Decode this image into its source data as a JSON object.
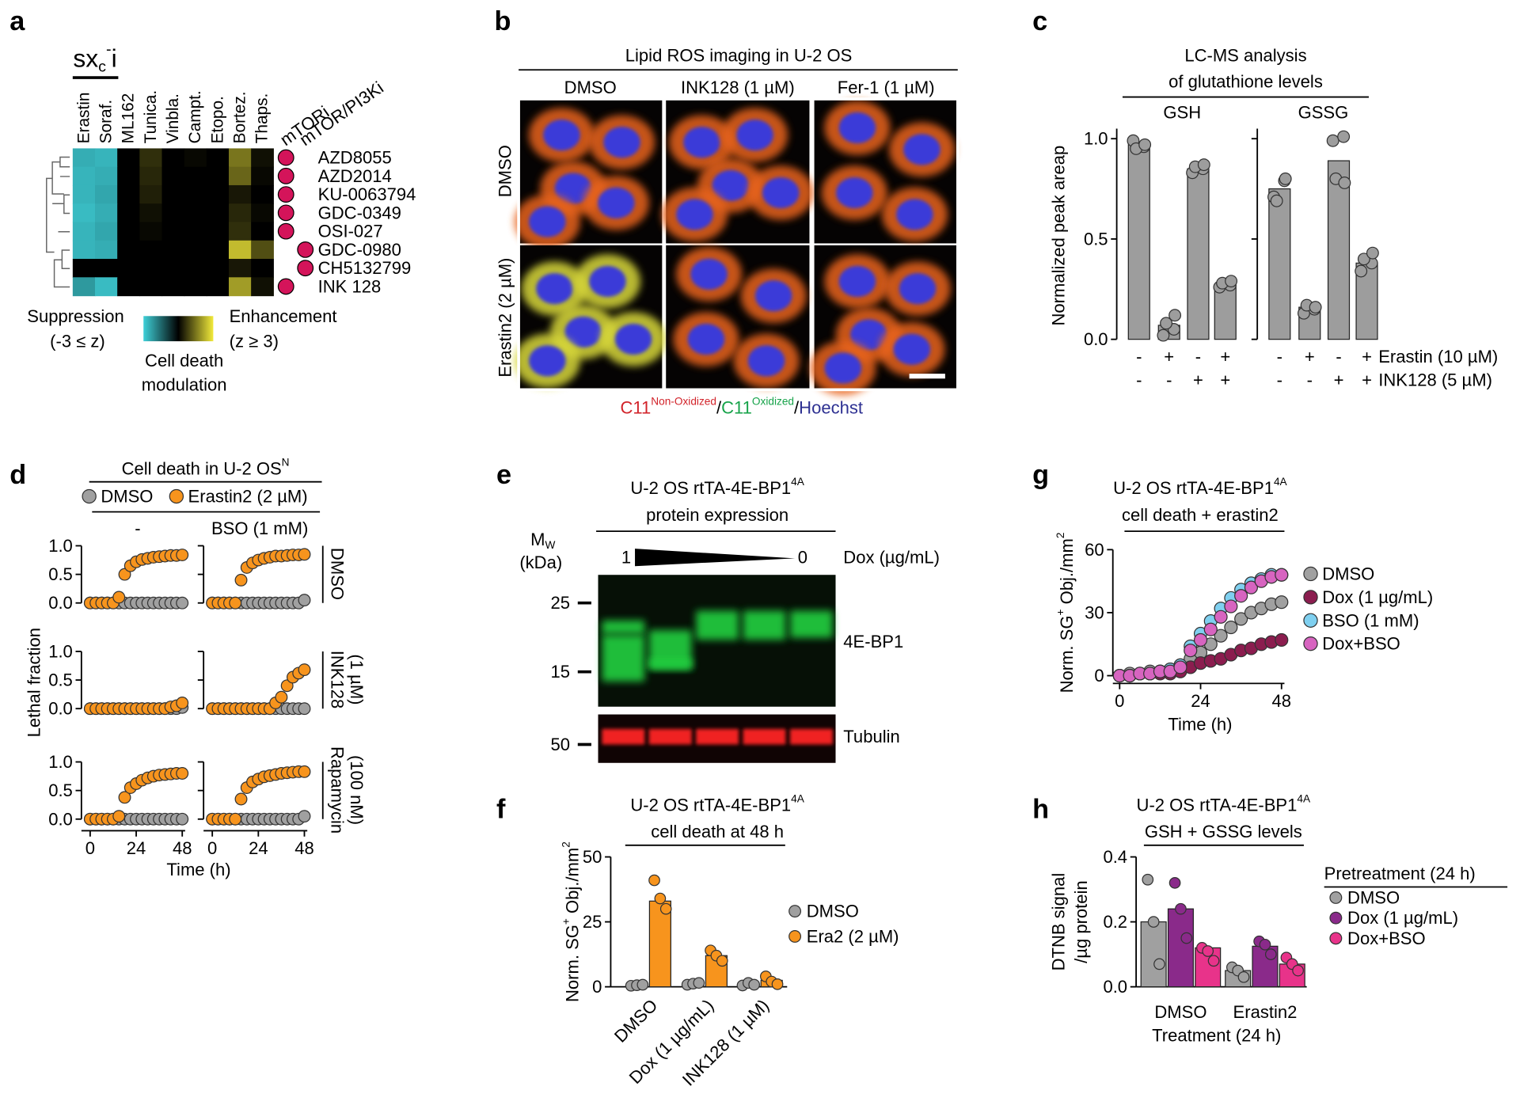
{
  "panel_labels": [
    "a",
    "b",
    "c",
    "d",
    "e",
    "f",
    "g",
    "h"
  ],
  "imaging": {
    "title": "Lipid ROS imaging in U-2 OS",
    "columns": [
      "DMSO",
      "INK128 (1 µM)",
      "Fer-1 (1 µM)"
    ],
    "rows": [
      "DMSO",
      "Erastin2 (2 µM)"
    ],
    "caption": [
      {
        "text": "C11",
        "color": "#d2232a"
      },
      {
        "text": "Non-Oxidized",
        "sup": true,
        "color": "#d2232a"
      },
      {
        "text": "/"
      },
      {
        "text": "C11",
        "color": "#17a34a"
      },
      {
        "text": "Oxidized",
        "sup": true,
        "color": "#17a34a"
      },
      {
        "text": "/"
      },
      {
        "text": "Hoechst",
        "color": "#2e3192"
      }
    ]
  },
  "blot": {
    "title": [
      [
        {
          "text": "U-2 OS rtTA-4E-BP1"
        },
        {
          "text": "4A",
          "sup": true
        }
      ],
      "protein expression"
    ],
    "mw_label": [
      {
        "text": "M"
      },
      {
        "text": "W",
        "sub": true
      }
    ],
    "mw_unit": "(kDa)",
    "dox_high": 1,
    "dox_low": 0,
    "dox_label": "Dox (µg/mL)",
    "markers": [
      25,
      15,
      50
    ],
    "bands": [
      "4E-BP1",
      "Tubulin"
    ]
  },
  "chart_data": [
    {
      "type": "heatmap",
      "title": [
        [
          {
            "text": "sx"
          },
          {
            "text": "c",
            "sub": true
          },
          {
            "text": "-",
            "sup": true
          },
          {
            "text": "i"
          }
        ]
      ],
      "columns": [
        "Erastin",
        "Soraf.",
        "ML162",
        "Tunica.",
        "Vinbla.",
        "Campt.",
        "Etopo.",
        "Bortez.",
        "Thaps."
      ],
      "rows": [
        "AZD8055",
        "AZD2014",
        "KU-0063794",
        "GDC-0349",
        "OSI-027",
        "GDC-0980",
        "CH5132799",
        "INK 128"
      ],
      "values": [
        [
          -2.5,
          -2.6,
          0,
          0.6,
          0,
          0.1,
          0,
          1.5,
          0.2
        ],
        [
          -2.6,
          -2.5,
          0,
          0.5,
          0,
          0,
          0,
          1.3,
          0.1
        ],
        [
          -2.6,
          -2.4,
          0,
          0.4,
          0,
          0,
          0,
          0.3,
          0
        ],
        [
          -2.7,
          -2.5,
          0,
          0.2,
          0,
          0,
          0,
          0.5,
          0.1
        ],
        [
          -2.6,
          -2.4,
          0,
          0.1,
          0,
          0,
          0,
          0.6,
          0
        ],
        [
          -2.6,
          -2.5,
          0,
          0,
          0,
          0,
          0,
          2.4,
          1.0
        ],
        [
          0,
          0,
          0,
          0,
          0,
          0,
          0,
          0.3,
          0
        ],
        [
          -2.2,
          -2.7,
          0,
          0,
          0,
          0,
          0,
          2.0,
          0.2
        ]
      ],
      "zlim": [
        -3,
        3
      ],
      "colors": {
        "low": "#3fd0d8",
        "mid": "#000000",
        "high": "#f2ea3a"
      },
      "classes": [
        {
          "name": "mTORi",
          "color": "#d4145a"
        },
        {
          "name": "mTOR/PI3Ki",
          "color": "#d4145a"
        }
      ],
      "row_class": [
        0,
        0,
        0,
        0,
        0,
        1,
        1,
        0
      ],
      "colorbar": {
        "low_label": "Suppression",
        "low_range": "(-3 ≤ z)",
        "high_label": "Enhancement",
        "high_range": "(z ≥ 3)",
        "title": [
          "Cell death",
          "modulation"
        ]
      }
    },
    {
      "type": "bar-dot",
      "title": [
        "LC-MS analysis",
        "of glutathione levels"
      ],
      "ylabel": [
        "Normalized peak areap"
      ],
      "ylim": [
        0,
        1.05
      ],
      "yticks": [
        {
          "value": 0,
          "label": "0.0"
        },
        {
          "value": 0.5,
          "label": "0.5"
        },
        {
          "value": 1,
          "label": "1.0"
        }
      ],
      "color": "#9d9d9d",
      "groups": [
        {
          "name": "GSH",
          "values": [
            0.97,
            0.07,
            0.85,
            0.27
          ],
          "points": [
            [
              0.99,
              0.96,
              0.95,
              0.97
            ],
            [
              0.02,
              0.05,
              0.08,
              0.12
            ],
            [
              0.83,
              0.85,
              0.86,
              0.87
            ],
            [
              0.26,
              0.27,
              0.28,
              0.29
            ]
          ]
        },
        {
          "name": "GSSG",
          "values": [
            0.75,
            0.16,
            0.89,
            0.38
          ],
          "points": [
            [
              0.71,
              0.79,
              0.69,
              0.8
            ],
            [
              0.13,
              0.15,
              0.17,
              0.16
            ],
            [
              0.99,
              1.01,
              0.8,
              0.78
            ],
            [
              0.34,
              0.38,
              0.4,
              0.43
            ]
          ]
        }
      ],
      "conditions": [
        {
          "name": "Erastin (10 µM)",
          "signs": [
            "-",
            "+",
            "-",
            "+",
            "-",
            "+",
            "-",
            "+"
          ]
        },
        {
          "name": "INK128 (5 µM)",
          "signs": [
            "-",
            "-",
            "+",
            "+",
            "-",
            "-",
            "+",
            "+"
          ]
        }
      ]
    },
    {
      "type": "line-grid",
      "title": [
        [
          {
            "text": "Cell death in U-2 OS"
          },
          {
            "text": "N",
            "sup": true
          }
        ]
      ],
      "series": [
        {
          "name": "DMSO",
          "color": "#a0a0a0"
        },
        {
          "name": "Erastin2 (2 µM)",
          "color": "#f7941d"
        }
      ],
      "columns": [
        "-",
        "BSO (1 mM)"
      ],
      "rows": [
        [
          "DMSO"
        ],
        [
          "INK128",
          "(1 µM)"
        ],
        [
          "Rapamycin",
          "(100 nM)"
        ]
      ],
      "xlabel": "Time (h)",
      "ylabel": [
        "Lethal fraction"
      ],
      "x": [
        0,
        3,
        6,
        9,
        12,
        15,
        18,
        21,
        24,
        27,
        30,
        33,
        36,
        39,
        42,
        45,
        48
      ],
      "xlim": [
        0,
        48
      ],
      "xticks": [
        0,
        24,
        48
      ],
      "ylim": [
        0,
        1
      ],
      "yticks": [
        {
          "value": 0,
          "label": "0.0"
        },
        {
          "value": 0.5,
          "label": "0.5"
        },
        {
          "value": 1,
          "label": "1.0"
        }
      ],
      "cells": [
        {
          "values": [
            [
              0,
              0,
              0,
              0,
              0,
              0,
              0,
              0,
              0,
              0,
              0,
              0,
              0,
              0,
              0,
              0,
              0
            ],
            [
              0,
              0,
              0,
              0,
              0,
              0.1,
              0.5,
              0.65,
              0.72,
              0.76,
              0.78,
              0.8,
              0.81,
              0.82,
              0.83,
              0.83,
              0.84
            ]
          ]
        },
        {
          "values": [
            [
              0,
              0,
              0,
              0,
              0,
              0,
              0,
              0,
              0,
              0,
              0,
              0,
              0,
              0,
              0,
              0,
              0.05
            ],
            [
              0,
              0,
              0,
              0,
              0,
              0.4,
              0.62,
              0.7,
              0.75,
              0.78,
              0.8,
              0.82,
              0.82,
              0.83,
              0.84,
              0.84,
              0.85
            ]
          ]
        },
        {
          "values": [
            [
              0,
              0,
              0,
              0,
              0,
              0,
              0,
              0,
              0,
              0,
              0,
              0,
              0,
              0,
              0,
              0,
              0.02
            ],
            [
              0,
              0,
              0,
              0,
              0,
              0,
              0,
              0,
              0,
              0,
              0,
              0,
              0,
              0,
              0.03,
              0.05,
              0.1
            ]
          ]
        },
        {
          "values": [
            [
              0,
              0,
              0,
              0,
              0,
              0,
              0,
              0,
              0,
              0,
              0,
              0,
              0,
              0,
              0,
              0,
              0
            ],
            [
              0,
              0,
              0,
              0,
              0,
              0,
              0,
              0,
              0,
              0,
              0,
              0.1,
              0.2,
              0.4,
              0.55,
              0.62,
              0.68
            ]
          ]
        },
        {
          "values": [
            [
              0,
              0,
              0,
              0,
              0,
              0,
              0,
              0,
              0,
              0,
              0,
              0,
              0,
              0,
              0,
              0,
              0
            ],
            [
              0,
              0,
              0,
              0,
              0,
              0.05,
              0.38,
              0.55,
              0.62,
              0.68,
              0.72,
              0.75,
              0.77,
              0.78,
              0.79,
              0.8,
              0.8
            ]
          ]
        },
        {
          "values": [
            [
              0,
              0,
              0,
              0,
              0,
              0,
              0,
              0,
              0,
              0,
              0,
              0,
              0,
              0,
              0,
              0,
              0.05
            ],
            [
              0,
              0,
              0,
              0,
              0,
              0.35,
              0.55,
              0.65,
              0.7,
              0.74,
              0.76,
              0.78,
              0.8,
              0.81,
              0.82,
              0.83,
              0.83
            ]
          ]
        }
      ]
    },
    {
      "type": "grouped-bar-dot",
      "title": [
        [
          {
            "text": "U-2 OS rtTA-4E-BP1"
          },
          {
            "text": "4A",
            "sup": true
          }
        ],
        "cell death at 48 h"
      ],
      "ylabel": [
        [
          {
            "text": "Norm. SG"
          },
          {
            "text": "+",
            "sup": true
          },
          {
            "text": " Obj./mm"
          },
          {
            "text": "2",
            "sup": true
          }
        ]
      ],
      "categories": [
        "DMSO",
        "Dox (1 µg/mL)",
        "INK128 (1 µM)"
      ],
      "ylim": [
        0,
        50
      ],
      "yticks": [
        0,
        25,
        50
      ],
      "series": [
        {
          "name": "DMSO",
          "color": "#a0a0a0",
          "values": [
            0.5,
            1,
            1
          ],
          "points": [
            [
              0.4,
              0.6,
              0.8
            ],
            [
              0.8,
              1.2,
              1.5
            ],
            [
              0.5,
              1.5,
              0.8
            ]
          ]
        },
        {
          "name": "Era2 (2 µM)",
          "color": "#f7941d",
          "values": [
            33,
            12,
            2.5
          ],
          "points": [
            [
              41,
              34,
              30
            ],
            [
              14,
              12,
              10
            ],
            [
              4,
              2,
              1
            ]
          ]
        }
      ]
    },
    {
      "type": "line",
      "title": [
        [
          {
            "text": "U-2 OS rtTA-4E-BP1"
          },
          {
            "text": "4A",
            "sup": true
          }
        ],
        "cell death + erastin2"
      ],
      "ylabel": [
        [
          {
            "text": "Norm. SG"
          },
          {
            "text": "+",
            "sup": true
          },
          {
            "text": " Obj./mm"
          },
          {
            "text": "2",
            "sup": true
          }
        ]
      ],
      "xlabel": "Time (h)",
      "x": [
        0,
        3,
        6,
        9,
        12,
        15,
        18,
        21,
        24,
        27,
        30,
        33,
        36,
        39,
        42,
        45,
        48
      ],
      "xlim": [
        0,
        48
      ],
      "xticks": [
        0,
        24,
        48
      ],
      "ylim": [
        0,
        60
      ],
      "yticks": [
        0,
        30,
        60
      ],
      "series": [
        {
          "name": "DMSO",
          "color": "#a0a0a0",
          "values": [
            0,
            1,
            1,
            2,
            2,
            3,
            5,
            8,
            11,
            15,
            19,
            23,
            27,
            30,
            32,
            34,
            35
          ]
        },
        {
          "name": "Dox (1 µg/mL)",
          "color": "#8b1d4f",
          "values": [
            0,
            0,
            1,
            1,
            1,
            1,
            2,
            4,
            6,
            7,
            8,
            10,
            12,
            13,
            15,
            16,
            17
          ]
        },
        {
          "name": "BSO (1 mM)",
          "color": "#7fd0f0",
          "values": [
            0,
            0,
            1,
            1,
            2,
            3,
            5,
            14,
            20,
            26,
            32,
            37,
            41,
            44,
            46,
            48,
            48
          ]
        },
        {
          "name": "Dox+BSO",
          "color": "#d764c0",
          "values": [
            0,
            0,
            1,
            1,
            2,
            2,
            4,
            12,
            17,
            22,
            28,
            33,
            38,
            42,
            45,
            47,
            48
          ]
        }
      ]
    },
    {
      "type": "grouped-bar-dot",
      "title": [
        [
          {
            "text": "U-2 OS rtTA-4E-BP1"
          },
          {
            "text": "4A",
            "sup": true
          }
        ],
        "GSH + GSSG levels"
      ],
      "ylabel": [
        "DTNB signal",
        "/µg protein"
      ],
      "xlabel": "Treatment (24 h)",
      "legend_title": "Pretreatment (24 h)",
      "categories": [
        "DMSO",
        "Erastin2"
      ],
      "ylim": [
        0,
        0.4
      ],
      "yticks": [
        {
          "value": 0,
          "label": "0.0"
        },
        {
          "value": 0.2,
          "label": "0.2"
        },
        {
          "value": 0.4,
          "label": "0.4"
        }
      ],
      "series": [
        {
          "name": "DMSO",
          "color": "#a0a0a0",
          "values": [
            0.2,
            0.05
          ],
          "points": [
            [
              0.33,
              0.2,
              0.07
            ],
            [
              0.06,
              0.05,
              0.03
            ]
          ]
        },
        {
          "name": "Dox (1 µg/mL)",
          "color": "#8a2a8a",
          "values": [
            0.24,
            0.125
          ],
          "points": [
            [
              0.32,
              0.24,
              0.15
            ],
            [
              0.14,
              0.13,
              0.1
            ]
          ]
        },
        {
          "name": "Dox+BSO",
          "color": "#e8338a",
          "values": [
            0.12,
            0.07
          ],
          "points": [
            [
              0.12,
              0.11,
              0.08
            ],
            [
              0.09,
              0.07,
              0.05
            ]
          ]
        }
      ]
    }
  ]
}
